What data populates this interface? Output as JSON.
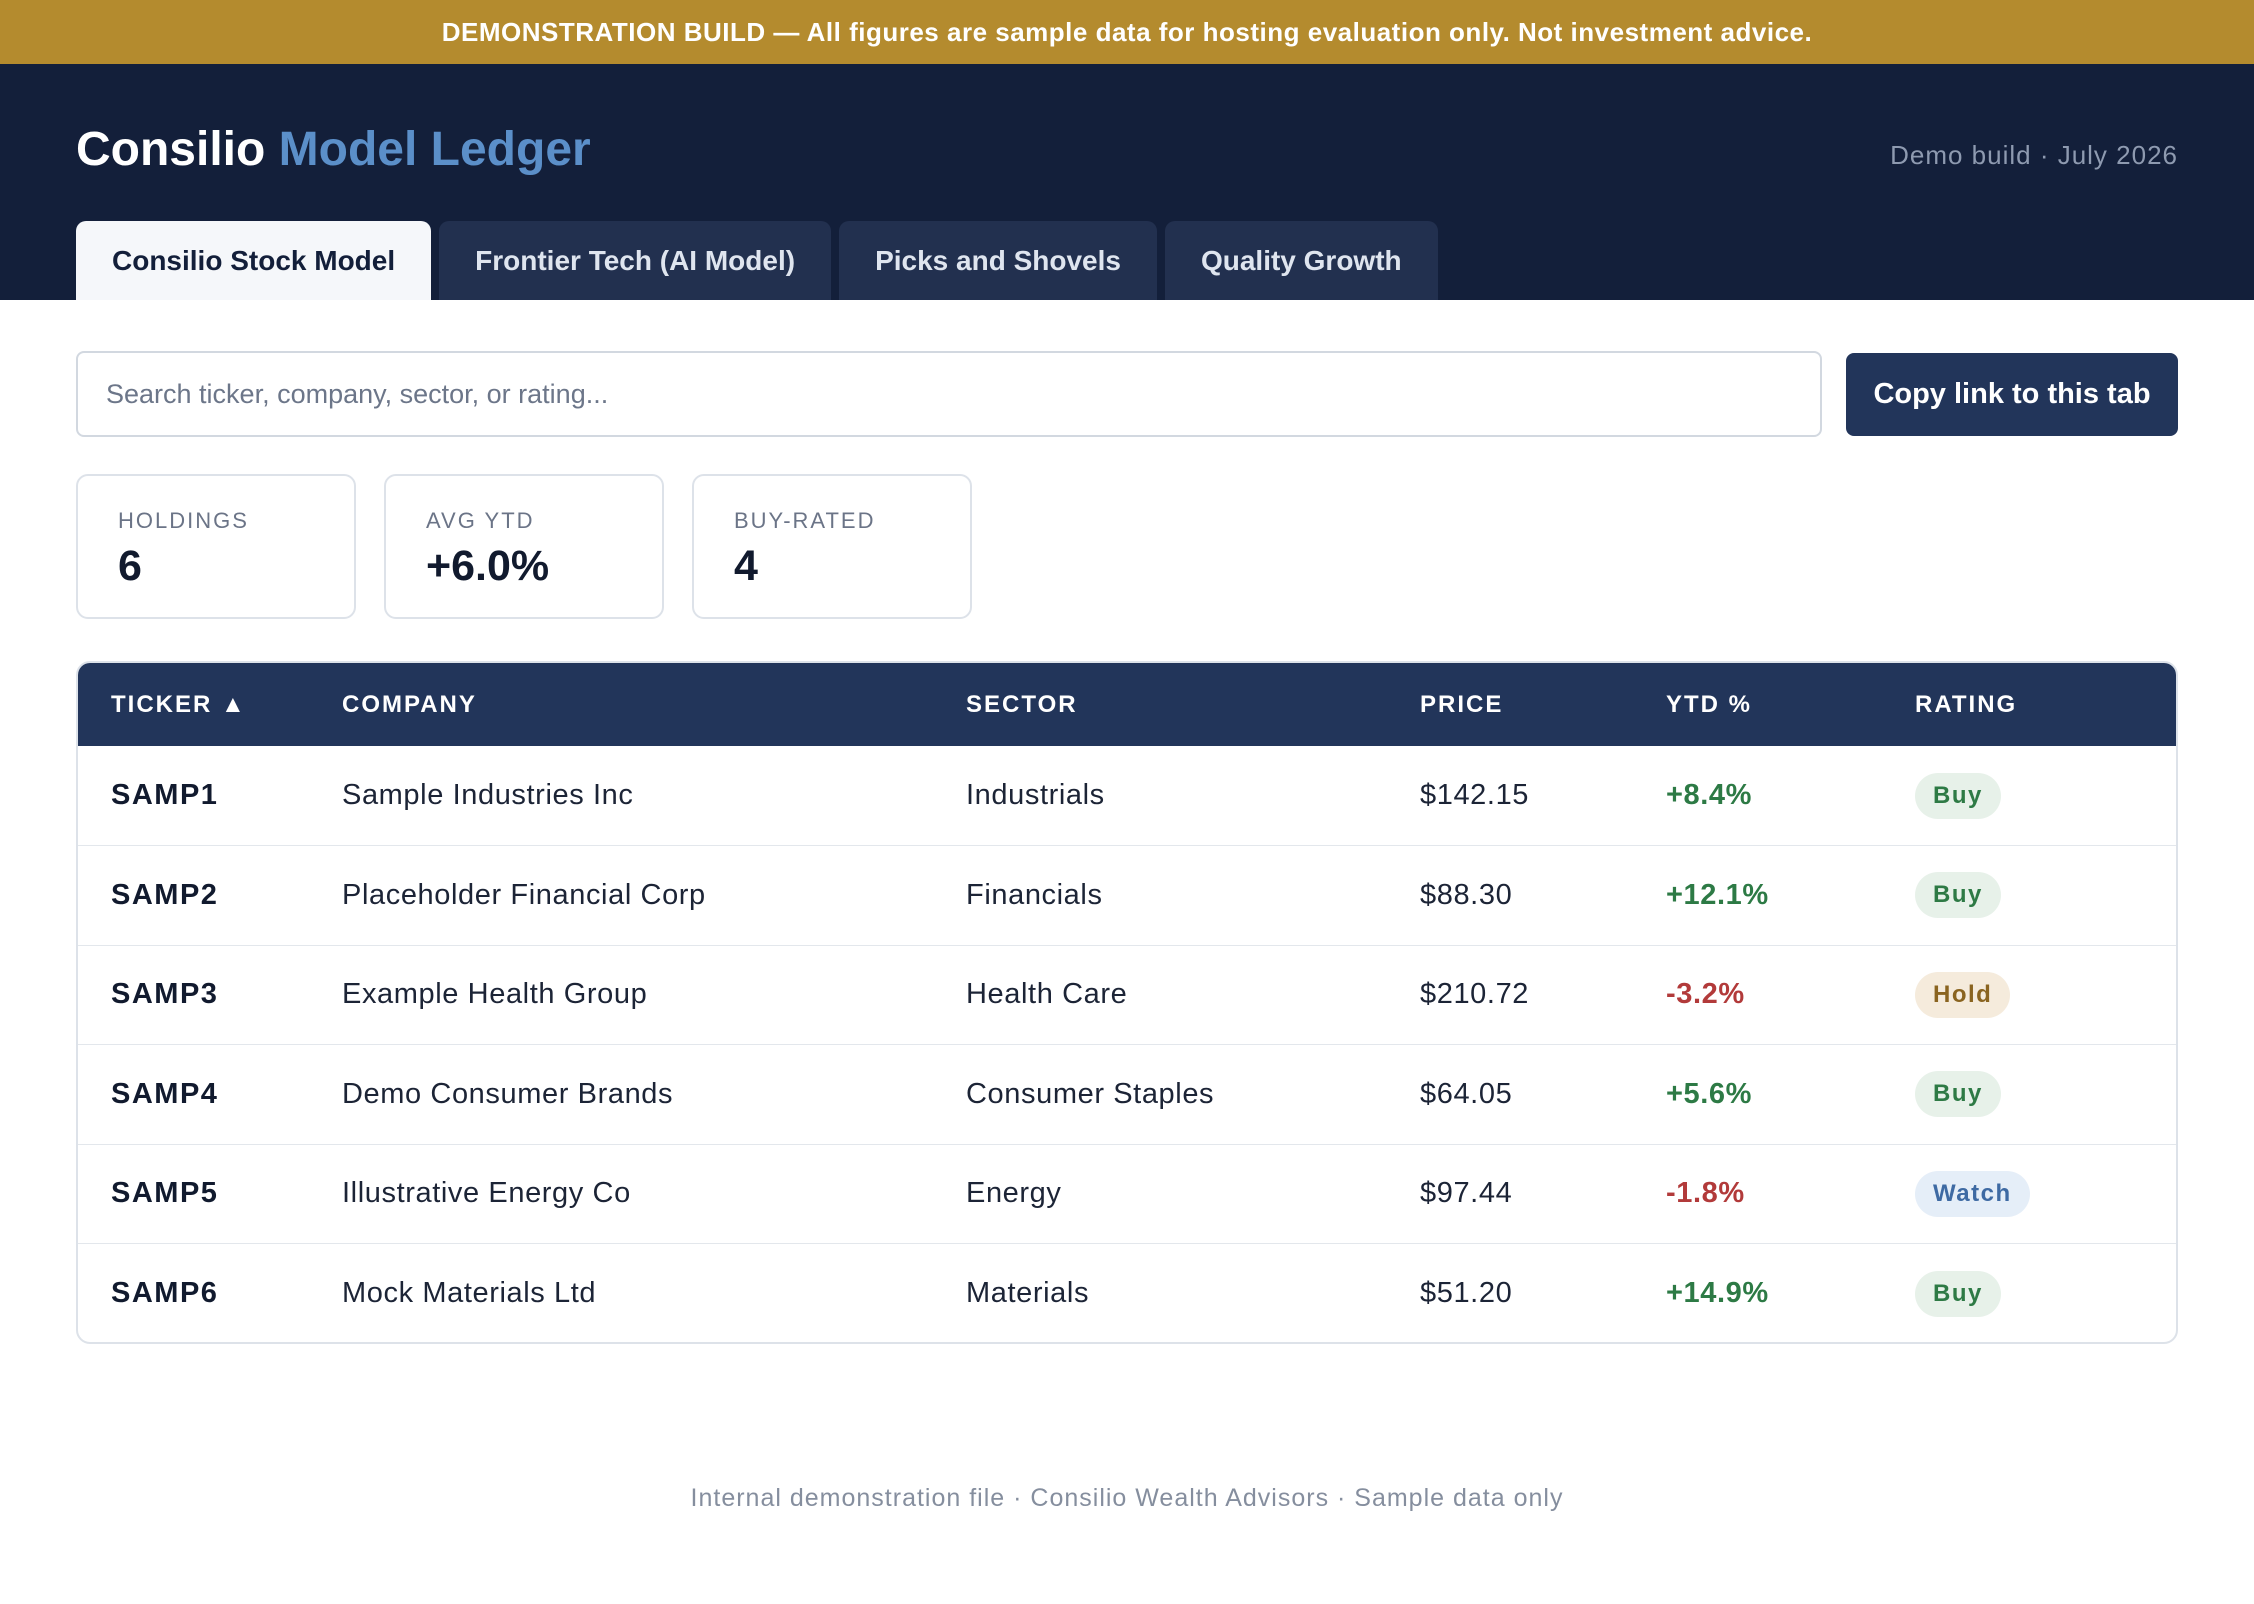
{
  "banner": {
    "text": "DEMONSTRATION BUILD — All figures are sample data for hosting evaluation only. Not investment advice.",
    "color": "#b48b2e"
  },
  "header": {
    "title_primary": "Consilio",
    "title_accent": "Model Ledger",
    "build_meta": "Demo build · July 2026",
    "background": "#131f3a",
    "accent_color": "#5b8fc9"
  },
  "tabs": [
    {
      "label": "Consilio Stock Model",
      "active": true
    },
    {
      "label": "Frontier Tech (AI Model)",
      "active": false
    },
    {
      "label": "Picks and Shovels",
      "active": false
    },
    {
      "label": "Quality Growth",
      "active": false
    }
  ],
  "search": {
    "placeholder": "Search ticker, company, sector, or rating...",
    "value": ""
  },
  "actions": {
    "copy_link_label": "Copy link to this tab"
  },
  "stats": [
    {
      "label": "HOLDINGS",
      "value": "6"
    },
    {
      "label": "AVG YTD",
      "value": "+6.0%"
    },
    {
      "label": "BUY-RATED",
      "value": "4"
    }
  ],
  "table": {
    "columns": [
      "TICKER ▲",
      "COMPANY",
      "SECTOR",
      "PRICE",
      "YTD %",
      "RATING"
    ],
    "sort": {
      "column": "TICKER",
      "direction": "ascending",
      "icon": "sort-ascending-icon"
    },
    "rows": [
      {
        "ticker": "SAMP1",
        "company": "Sample Industries Inc",
        "sector": "Industrials",
        "price": "$142.15",
        "ytd": "+8.4%",
        "rating": "Buy"
      },
      {
        "ticker": "SAMP2",
        "company": "Placeholder Financial Corp",
        "sector": "Financials",
        "price": "$88.30",
        "ytd": "+12.1%",
        "rating": "Buy"
      },
      {
        "ticker": "SAMP3",
        "company": "Example Health Group",
        "sector": "Health Care",
        "price": "$210.72",
        "ytd": "-3.2%",
        "rating": "Hold"
      },
      {
        "ticker": "SAMP4",
        "company": "Demo Consumer Brands",
        "sector": "Consumer Staples",
        "price": "$64.05",
        "ytd": "+5.6%",
        "rating": "Buy"
      },
      {
        "ticker": "SAMP5",
        "company": "Illustrative Energy Co",
        "sector": "Energy",
        "price": "$97.44",
        "ytd": "-1.8%",
        "rating": "Watch"
      },
      {
        "ticker": "SAMP6",
        "company": "Mock Materials Ltd",
        "sector": "Materials",
        "price": "$51.20",
        "ytd": "+14.9%",
        "rating": "Buy"
      }
    ],
    "colors": {
      "positive": "#2d7a45",
      "negative": "#b23a3a",
      "buy": "#2e7a45",
      "hold": "#8a6420",
      "watch": "#3e6aa3"
    }
  },
  "footer": {
    "text": "Internal demonstration file · Consilio Wealth Advisors · Sample data only"
  }
}
